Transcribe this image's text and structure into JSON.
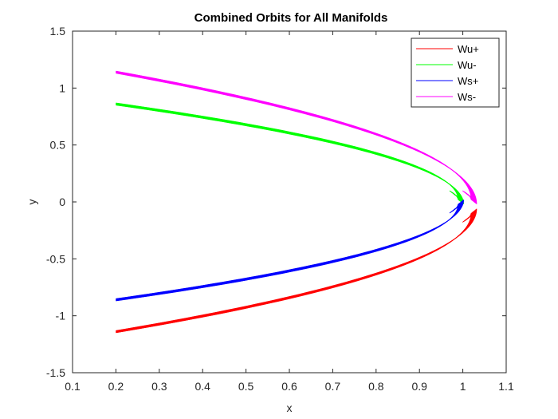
{
  "chart_data": {
    "type": "line",
    "title": "Combined Orbits for All Manifolds",
    "xlabel": "x",
    "ylabel": "y",
    "xlim": [
      0.1,
      1.1
    ],
    "ylim": [
      -1.5,
      1.5
    ],
    "xticks": [
      "0.1",
      "0.2",
      "0.3",
      "0.4",
      "0.5",
      "0.6",
      "0.7",
      "0.8",
      "0.9",
      "1",
      "1.1"
    ],
    "yticks": [
      "-1.5",
      "-1",
      "-0.5",
      "0",
      "0.5",
      "1",
      "1.5"
    ],
    "grid": false,
    "legend_position": "top-right",
    "series": [
      {
        "name": "Wu+",
        "color": "#ff0000",
        "curve": "lower",
        "x_start": 0.2,
        "y_start": -1.13,
        "x_end": 1.02,
        "y_end": -0.08
      },
      {
        "name": "Wu-",
        "color": "#00ff00",
        "curve": "upper",
        "x_start": 0.2,
        "y_start": 0.85,
        "x_end": 0.99,
        "y_end": 0.0
      },
      {
        "name": "Ws+",
        "color": "#0000ff",
        "curve": "lower",
        "x_start": 0.2,
        "y_start": -0.85,
        "x_end": 0.99,
        "y_end": 0.0
      },
      {
        "name": "Ws-",
        "color": "#ff00ff",
        "curve": "upper",
        "x_start": 0.2,
        "y_start": 1.13,
        "x_end": 1.02,
        "y_end": 0.0
      }
    ]
  }
}
